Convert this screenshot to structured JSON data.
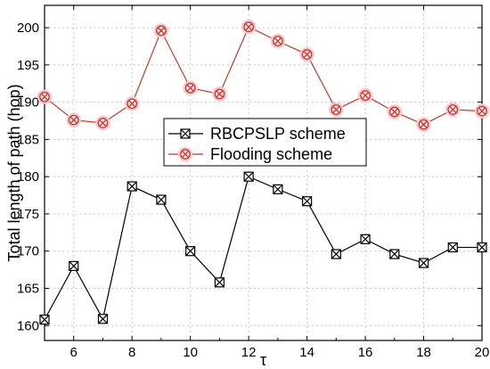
{
  "chart_data": {
    "type": "line",
    "title": "",
    "xlabel": "τ",
    "ylabel": "Total length of path (hop)",
    "xlim": [
      5,
      20
    ],
    "ylim": [
      158,
      203
    ],
    "x_ticks": [
      6,
      8,
      10,
      12,
      14,
      16,
      18,
      20
    ],
    "y_ticks": [
      160,
      165,
      170,
      175,
      180,
      185,
      190,
      195,
      200
    ],
    "grid": true,
    "legend_position": "center",
    "x": [
      5,
      6,
      7,
      8,
      9,
      10,
      11,
      12,
      13,
      14,
      15,
      16,
      17,
      18,
      19,
      20
    ],
    "series": [
      {
        "name": "RBCPSLP scheme",
        "color": "#000000",
        "marker": "boxed-x",
        "values": [
          160.8,
          168.0,
          160.9,
          178.7,
          176.9,
          170.0,
          165.8,
          180.0,
          178.3,
          176.7,
          169.6,
          171.6,
          169.6,
          168.4,
          170.5,
          170.5
        ]
      },
      {
        "name": "Flooding scheme",
        "color": "#c0392b",
        "marker": "circled-x",
        "values": [
          190.7,
          187.6,
          187.2,
          189.8,
          199.6,
          191.9,
          191.1,
          200.1,
          198.2,
          196.4,
          189.0,
          190.9,
          188.7,
          187.0,
          189.0,
          188.8
        ]
      }
    ]
  }
}
